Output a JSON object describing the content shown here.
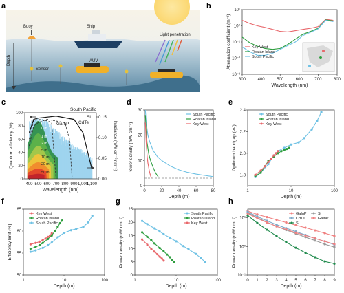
{
  "panel_letters": [
    "a",
    "b",
    "c",
    "d",
    "e",
    "f",
    "g",
    "h"
  ],
  "colors": {
    "south_pacific": "#6ec1e4",
    "roatan": "#2e9e3f",
    "key_west": "#e8676b",
    "gainp": "#f08080",
    "si": "#1f8a4c",
    "cdte": "#7fa8c9",
    "grey": "#9a9a9a"
  },
  "scene": {
    "labels": {
      "ship": "Ship",
      "buoy": "Buoy",
      "auv": "AUV",
      "light": "Light penetration",
      "sensor": "Sensor",
      "depth": "Depth"
    }
  },
  "chart_data": [
    {
      "panel": "b",
      "type": "line",
      "xlabel": "Wavelength (nm)",
      "ylabel": "Attenuation coefficient (m⁻¹)",
      "xlim": [
        300,
        800
      ],
      "ylim_log10": [
        -3,
        1
      ],
      "y_scale": "log",
      "xticks": [
        "300",
        "400",
        "500",
        "600",
        "700",
        "800"
      ],
      "yticks": [
        "10⁻³",
        "10⁻²",
        "10⁻¹",
        "10⁰",
        "10¹"
      ],
      "legend": [
        "Key West",
        "Roatán Island",
        "South Pacific"
      ],
      "series": [
        {
          "name": "Key West",
          "x": [
            300,
            340,
            380,
            420,
            460,
            500,
            540,
            580,
            620,
            660,
            700,
            740,
            780
          ],
          "y": [
            2.2,
            1.4,
            1.0,
            0.8,
            0.6,
            0.45,
            0.42,
            0.5,
            0.6,
            0.7,
            0.9,
            2.5,
            2.2
          ]
        },
        {
          "name": "Roatán Island",
          "x": [
            300,
            340,
            380,
            420,
            460,
            500,
            540,
            580,
            620,
            660,
            700,
            740,
            780
          ],
          "y": [
            0.2,
            0.09,
            0.055,
            0.04,
            0.035,
            0.04,
            0.07,
            0.15,
            0.3,
            0.45,
            0.7,
            2.3,
            2.0
          ]
        },
        {
          "name": "South Pacific",
          "x": [
            300,
            340,
            380,
            420,
            460,
            500,
            540,
            580,
            620,
            660,
            700,
            740,
            780
          ],
          "y": [
            0.05,
            0.025,
            0.015,
            0.015,
            0.02,
            0.035,
            0.06,
            0.1,
            0.25,
            0.4,
            0.65,
            2.2,
            1.8
          ]
        }
      ]
    },
    {
      "panel": "c",
      "type": "area",
      "xlabel": "Wavelength (nm)",
      "ylabel": "Quantum efficiency (%)",
      "y2label": "Irradiance (mW cm⁻² nm⁻¹)",
      "xticks": [
        "400",
        "500",
        "600",
        "700",
        "800",
        "900",
        "1,000",
        "1,100"
      ],
      "yticks": [
        "0",
        "20",
        "40",
        "60",
        "80",
        "100"
      ],
      "y2ticks": [
        "0.00",
        "0.05",
        "0.10",
        "0.15"
      ],
      "annotations": [
        "South Pacific",
        "Si",
        "GaInP",
        "CdTe",
        "0 m",
        "1 m",
        "2 m",
        "5 m",
        "10 m",
        "20 m",
        "50 m"
      ],
      "series": [
        {
          "name": "South Pacific",
          "x": [
            400,
            500,
            600,
            700,
            800,
            900,
            1000,
            1100
          ],
          "y": [
            0.14,
            0.15,
            0.14,
            0.12,
            0.1,
            0.08,
            0.07,
            0.05
          ]
        },
        {
          "name": "GaInP",
          "x": [
            400,
            450,
            500,
            600,
            650,
            700
          ],
          "y": [
            60,
            88,
            90,
            88,
            85,
            0
          ]
        },
        {
          "name": "CdTe",
          "x": [
            400,
            450,
            500,
            600,
            800,
            850,
            880
          ],
          "y": [
            50,
            80,
            85,
            90,
            85,
            60,
            0
          ]
        },
        {
          "name": "Si",
          "x": [
            400,
            450,
            500,
            700,
            900,
            1000,
            1100
          ],
          "y": [
            70,
            90,
            92,
            95,
            90,
            70,
            15
          ]
        }
      ]
    },
    {
      "panel": "d",
      "type": "line",
      "xlabel": "Depth (m)",
      "ylabel": "Power density (mW cm⁻²)",
      "xlim": [
        0,
        80
      ],
      "ylim": [
        0,
        30
      ],
      "xticks": [
        "0",
        "20",
        "40",
        "60",
        "80"
      ],
      "yticks": [
        "0",
        "10",
        "20",
        "30"
      ],
      "legend": [
        "South Pacific",
        "Roatán Island",
        "Key West"
      ],
      "threshold": 3,
      "series": [
        {
          "name": "South Pacific",
          "x": [
            1,
            2,
            4,
            6,
            10,
            15,
            20,
            30,
            40,
            50,
            60,
            70,
            80
          ],
          "y": [
            30,
            25,
            20,
            17.5,
            14,
            11.5,
            10,
            7.8,
            6.3,
            5.3,
            4.6,
            4.1,
            3.6
          ]
        },
        {
          "name": "Roatán Island",
          "x": [
            1,
            2,
            3,
            5,
            7,
            10,
            13,
            16
          ],
          "y": [
            28,
            21,
            17,
            12.5,
            10,
            7.3,
            5,
            3.5
          ]
        },
        {
          "name": "Key West",
          "x": [
            1,
            2,
            3,
            4,
            5,
            6,
            7,
            8
          ],
          "y": [
            25,
            17,
            12,
            9,
            7,
            5.3,
            4,
            3
          ]
        }
      ]
    },
    {
      "panel": "e",
      "type": "line",
      "xlabel": "Depth (m)",
      "ylabel": "Optimum bandgap (eV)",
      "x_scale": "log",
      "xlim": [
        1,
        100
      ],
      "ylim": [
        1.7,
        2.4
      ],
      "xticks": [
        "1",
        "10",
        "100"
      ],
      "yticks": [
        "1.8",
        "2.0",
        "2.2",
        "2.4"
      ],
      "legend": [
        "South Pacific",
        "Roatán Island",
        "Key West"
      ],
      "series": [
        {
          "name": "South Pacific",
          "x": [
            1.5,
            2,
            3,
            4,
            5,
            7,
            10,
            15,
            20,
            30,
            40,
            50
          ],
          "y": [
            1.78,
            1.82,
            1.9,
            1.98,
            2.02,
            2.05,
            2.08,
            2.1,
            2.14,
            2.22,
            2.3,
            2.38
          ]
        },
        {
          "name": "Roatán Island",
          "x": [
            1.5,
            2,
            2.5,
            3,
            4,
            5,
            6,
            7,
            8,
            9
          ],
          "y": [
            1.79,
            1.82,
            1.88,
            1.93,
            1.97,
            2.0,
            2.02,
            2.03,
            2.04,
            2.05
          ]
        },
        {
          "name": "Key West",
          "x": [
            1.5,
            2,
            2.5,
            3,
            3.5,
            4,
            4.5,
            5
          ],
          "y": [
            1.8,
            1.84,
            1.88,
            1.92,
            1.95,
            1.98,
            2.0,
            2.02
          ]
        }
      ]
    },
    {
      "panel": "f",
      "type": "line",
      "xlabel": "Depth (m)",
      "ylabel": "Efficiency limit (%)",
      "x_scale": "log",
      "xlim": [
        1,
        100
      ],
      "ylim": [
        50,
        65
      ],
      "xticks": [
        "1",
        "10",
        "100"
      ],
      "yticks": [
        "50",
        "55",
        "60",
        "65"
      ],
      "legend": [
        "Key West",
        "Roatán Island",
        "South Pacific"
      ],
      "series": [
        {
          "name": "Key West",
          "x": [
            1.5,
            2,
            2.5,
            3,
            3.5,
            4,
            4.5,
            5
          ],
          "y": [
            57,
            57.3,
            57.6,
            58,
            58.3,
            58.7,
            59,
            59.5
          ]
        },
        {
          "name": "Roatán Island",
          "x": [
            1.5,
            2,
            2.5,
            3,
            4,
            5,
            6,
            7,
            8,
            9
          ],
          "y": [
            56,
            56.4,
            56.8,
            57.3,
            58.2,
            59,
            60,
            61,
            61.8,
            62.4
          ]
        },
        {
          "name": "South Pacific",
          "x": [
            1.5,
            2,
            3,
            4,
            5,
            7,
            10,
            15,
            20,
            30,
            40,
            50
          ],
          "y": [
            55.3,
            55.6,
            56.2,
            56.8,
            57.4,
            58.6,
            59.6,
            60.2,
            60.5,
            61,
            62,
            63.5
          ]
        }
      ]
    },
    {
      "panel": "g",
      "type": "line",
      "xlabel": "Depth (m)",
      "ylabel": "Power density (mW cm⁻²)",
      "x_scale": "log",
      "xlim": [
        1,
        100
      ],
      "ylim": [
        0,
        25
      ],
      "xticks": [
        "1",
        "10",
        "100"
      ],
      "yticks": [
        "0",
        "5",
        "10",
        "15",
        "20",
        "25"
      ],
      "legend": [
        "South Pacific",
        "Roatán Island",
        "Key West"
      ],
      "series": [
        {
          "name": "South Pacific",
          "x": [
            1.5,
            2,
            3,
            4,
            5,
            7,
            10,
            15,
            20,
            30,
            40,
            50
          ],
          "y": [
            20.5,
            19.3,
            17.7,
            16.5,
            15.5,
            14.2,
            12.8,
            11,
            9.8,
            8,
            6.5,
            5
          ]
        },
        {
          "name": "Roatán Island",
          "x": [
            1.5,
            2,
            2.5,
            3,
            4,
            5,
            6,
            7,
            8,
            9
          ],
          "y": [
            16.2,
            14.5,
            13.2,
            12,
            10.3,
            9,
            7.8,
            6.8,
            5.8,
            5
          ]
        },
        {
          "name": "Key West",
          "x": [
            1.5,
            2,
            2.5,
            3,
            3.5,
            4,
            4.5,
            5
          ],
          "y": [
            13.5,
            11.5,
            10,
            8.9,
            7.9,
            7,
            6.3,
            5.5
          ]
        }
      ]
    },
    {
      "panel": "h",
      "type": "line",
      "xlabel": "Depth (m)",
      "ylabel": "Power density (mW cm⁻²)",
      "y_scale": "log",
      "xlim": [
        0,
        9
      ],
      "ylim_log10": [
        -1,
        1.3
      ],
      "xticks": [
        "0",
        "1",
        "2",
        "3",
        "4",
        "5",
        "6",
        "7",
        "8",
        "9"
      ],
      "yticks": [
        "10⁻¹",
        "10⁰",
        "10¹"
      ],
      "legend": [
        "GaInP",
        "Si",
        "CdTe",
        "GaInP",
        "Si"
      ],
      "series": [
        {
          "name": "GaInP",
          "x": [
            0,
            1,
            2,
            3,
            4,
            5,
            6,
            7,
            8,
            9
          ],
          "y": [
            17,
            13,
            10.5,
            8.5,
            6.8,
            5.5,
            4.5,
            3.6,
            2.9,
            2.3
          ]
        },
        {
          "name": "Si",
          "x": [
            0,
            1,
            2,
            3,
            4,
            5,
            6,
            7,
            8,
            9
          ],
          "y": [
            15,
            10,
            7,
            5,
            3.7,
            2.8,
            2.1,
            1.6,
            1.2,
            0.95
          ]
        },
        {
          "name": "CdTe",
          "x": [
            0,
            1,
            2,
            3,
            4,
            5,
            6,
            7,
            8,
            9
          ],
          "y": [
            16,
            11,
            7.8,
            5.7,
            4.3,
            3.3,
            2.5,
            1.9,
            1.5,
            1.15
          ]
        },
        {
          "name": "GaInP",
          "x": [
            0,
            1,
            2,
            3,
            4,
            5,
            6,
            7,
            8,
            9
          ],
          "y": [
            14,
            9.5,
            6.8,
            5,
            3.9,
            3,
            2.4,
            1.9,
            1.5,
            1.2
          ]
        },
        {
          "name": "Si",
          "x": [
            0,
            1,
            2,
            3,
            4,
            5,
            6,
            7,
            8,
            9
          ],
          "y": [
            12,
            6.5,
            3.8,
            2.3,
            1.4,
            0.9,
            0.6,
            0.42,
            0.3,
            0.25
          ]
        }
      ]
    }
  ]
}
